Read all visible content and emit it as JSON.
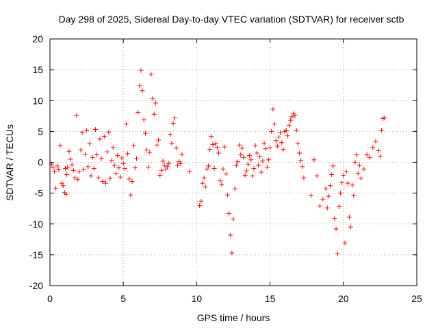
{
  "chart_data": {
    "type": "scatter",
    "title": "Day 298 of 2025, Sidereal Day-to-day VTEC variation (SDTVAR) for receiver sctb",
    "xlabel": "GPS time / hours",
    "ylabel": "SDTVAR / TECUs",
    "xlim": [
      0,
      25
    ],
    "ylim": [
      -20,
      20
    ],
    "xticks": [
      0,
      5,
      10,
      15,
      20,
      25
    ],
    "yticks": [
      -20,
      -15,
      -10,
      -5,
      0,
      5,
      10,
      15,
      20
    ],
    "xtick_labels": [
      "0",
      "5",
      "10",
      "15",
      "20",
      "25"
    ],
    "ytick_labels": [
      "-20",
      "-15",
      "-10",
      "-5",
      "0",
      "5",
      "10",
      "15",
      "20"
    ],
    "grid": true,
    "marker": "+",
    "color": "#ff0000",
    "series": [
      {
        "name": "SDTVAR",
        "x": [
          0.1,
          0.2,
          0.3,
          0.4,
          0.5,
          0.6,
          0.7,
          0.8,
          0.9,
          1.0,
          1.05,
          1.1,
          1.15,
          1.2,
          1.3,
          1.4,
          1.5,
          1.6,
          1.7,
          1.8,
          1.9,
          2.0,
          2.1,
          2.2,
          2.3,
          2.4,
          2.5,
          2.6,
          2.7,
          2.8,
          2.9,
          3.0,
          3.1,
          3.2,
          3.3,
          3.4,
          3.5,
          3.6,
          3.7,
          3.8,
          3.9,
          4.0,
          4.1,
          4.2,
          4.3,
          4.4,
          4.5,
          4.6,
          4.7,
          4.8,
          4.9,
          5.0,
          5.1,
          5.2,
          5.3,
          5.4,
          5.5,
          5.6,
          5.7,
          5.8,
          5.9,
          6.0,
          6.1,
          6.2,
          6.3,
          6.4,
          6.5,
          6.6,
          6.7,
          6.8,
          6.9,
          7.0,
          7.1,
          7.2,
          7.3,
          7.4,
          7.5,
          7.6,
          7.7,
          7.8,
          7.9,
          8.0,
          8.1,
          8.2,
          8.3,
          8.4,
          8.5,
          8.6,
          8.7,
          8.8,
          8.9,
          9.0,
          9.5,
          10.2,
          10.3,
          10.4,
          10.5,
          10.6,
          10.7,
          10.8,
          10.9,
          11.0,
          11.1,
          11.2,
          11.3,
          11.4,
          11.5,
          11.6,
          11.7,
          11.8,
          11.9,
          12.0,
          12.1,
          12.2,
          12.3,
          12.4,
          12.5,
          12.6,
          12.7,
          12.8,
          12.9,
          13.0,
          13.1,
          13.2,
          13.3,
          13.4,
          13.5,
          13.6,
          13.7,
          13.8,
          13.9,
          14.0,
          14.1,
          14.2,
          14.3,
          14.4,
          14.5,
          14.6,
          14.7,
          14.8,
          14.9,
          15.0,
          15.1,
          15.2,
          15.3,
          15.4,
          15.5,
          15.6,
          15.7,
          15.8,
          15.9,
          16.0,
          16.1,
          16.2,
          16.3,
          16.4,
          16.5,
          16.6,
          16.7,
          16.8,
          16.9,
          17.0,
          17.1,
          17.2,
          17.3,
          17.8,
          18.0,
          18.2,
          18.4,
          18.6,
          18.8,
          18.9,
          19.0,
          19.1,
          19.2,
          19.3,
          19.4,
          19.5,
          19.6,
          19.7,
          19.8,
          19.9,
          20.0,
          20.1,
          20.2,
          20.3,
          20.4,
          20.5,
          20.6,
          20.7,
          20.8,
          20.9,
          21.0,
          21.1,
          21.2,
          21.4,
          21.6,
          21.8,
          22.0,
          22.2,
          22.4,
          22.5,
          22.6,
          22.7,
          22.8
        ],
        "y": [
          -0.3,
          -0.8,
          -1.5,
          -4.2,
          -0.6,
          -1.2,
          2.7,
          -3.4,
          -3.8,
          -4.9,
          -1.0,
          -5.2,
          -2.0,
          -0.8,
          1.8,
          0.5,
          -0.4,
          -1.3,
          -2.5,
          7.6,
          -2.8,
          -1.5,
          2.0,
          4.8,
          -1.2,
          1.3,
          5.2,
          -0.7,
          3.0,
          -2.2,
          0.8,
          -1.0,
          5.3,
          1.2,
          -2.5,
          3.8,
          0.6,
          -3.1,
          4.2,
          -3.4,
          1.7,
          4.9,
          -2.6,
          0.3,
          2.4,
          -0.5,
          -1.8,
          1.1,
          -0.9,
          -2.4,
          0.7,
          -0.2,
          -1.0,
          6.2,
          1.4,
          -2.7,
          -5.3,
          -3.1,
          2.7,
          -0.9,
          0.6,
          8.1,
          12.4,
          14.9,
          11.6,
          6.9,
          4.7,
          2.0,
          -0.8,
          1.6,
          14.3,
          10.3,
          7.8,
          9.6,
          2.8,
          3.6,
          -2.1,
          -1.3,
          0.2,
          -0.5,
          -1.1,
          -0.7,
          -0.2,
          4.5,
          3.1,
          6.3,
          7.2,
          2.3,
          -0.5,
          0.1,
          -0.2,
          1.3,
          -1.5,
          -7.0,
          -6.3,
          -3.4,
          -2.5,
          -4.0,
          -1.1,
          -0.6,
          2.1,
          4.2,
          2.9,
          -1.0,
          3.0,
          2.4,
          1.5,
          -3.0,
          -3.6,
          -1.1,
          2.5,
          -1.9,
          -5.3,
          -8.3,
          -11.8,
          -14.7,
          -9.2,
          -4.3,
          -0.5,
          0.1,
          2.8,
          1.2,
          2.3,
          0.8,
          -2.1,
          -1.4,
          -0.3,
          1.1,
          0.4,
          -2.2,
          -1.0,
          2.7,
          1.5,
          -0.5,
          0.9,
          -1.6,
          0.2,
          3.1,
          2.2,
          -0.8,
          0.4,
          2.4,
          5.0,
          8.6,
          6.2,
          3.5,
          2.6,
          4.1,
          4.8,
          3.2,
          2.1,
          5.0,
          5.2,
          4.3,
          6.0,
          6.8,
          7.4,
          7.9,
          7.6,
          5.2,
          3.0,
          1.5,
          0.3,
          -0.7,
          -2.5,
          -5.4,
          0.4,
          -2.2,
          -7.1,
          -6.0,
          -4.3,
          -7.4,
          -5.5,
          -3.8,
          -2.0,
          -0.6,
          -9.1,
          -10.8,
          -14.8,
          -7.2,
          -5.0,
          -3.3,
          -2.1,
          -13.1,
          -1.5,
          -3.4,
          -8.9,
          -10.5,
          -3.7,
          -5.4,
          0.0,
          1.2,
          -1.8,
          -0.5,
          -2.6,
          -1.1,
          1.2,
          0.8,
          2.4,
          3.4,
          1.9,
          1.0,
          5.2,
          7.1,
          7.2
        ]
      }
    ]
  }
}
